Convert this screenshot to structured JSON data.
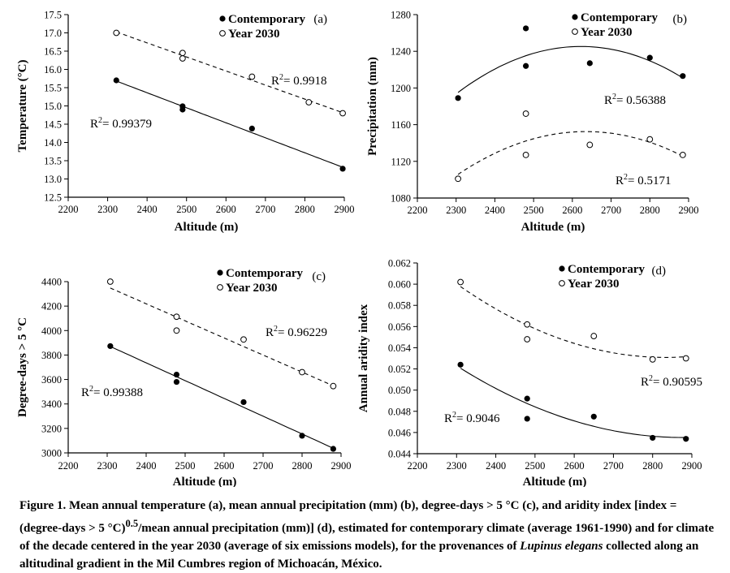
{
  "chart_data": [
    {
      "type": "scatter",
      "panel_label": "(a)",
      "xlabel": "Altitude (m)",
      "ylabel": "Temperature (°C)",
      "xlim": [
        2200,
        2900
      ],
      "ylim": [
        12.5,
        17.5
      ],
      "x_ticks": [
        "2200",
        "2300",
        "2400",
        "2500",
        "2600",
        "2700",
        "2800",
        "2900"
      ],
      "y_ticks": [
        "12.5",
        "13.0",
        "13.5",
        "14.0",
        "14.5",
        "15.0",
        "15.5",
        "16.0",
        "16.5",
        "17.0",
        "17.5"
      ],
      "legend": [
        "Contemporary",
        "Year 2030"
      ],
      "series": [
        {
          "name": "Contemporary",
          "marker": "filled",
          "x": [
            2322,
            2490,
            2490,
            2666,
            2896
          ],
          "y": [
            15.7,
            14.99,
            14.9,
            14.38,
            13.28
          ],
          "fit": "linear",
          "r2_text": "= 0.99379"
        },
        {
          "name": "Year 2030",
          "marker": "open",
          "x": [
            2322,
            2490,
            2490,
            2666,
            2810,
            2896
          ],
          "y": [
            17.0,
            16.45,
            16.3,
            15.8,
            15.1,
            14.8
          ],
          "fit": "linear",
          "r2_text": "= 0.9918"
        }
      ]
    },
    {
      "type": "scatter",
      "panel_label": "(b)",
      "xlabel": "Altitude (m)",
      "ylabel": "Precipitation (mm)",
      "xlim": [
        2200,
        2900
      ],
      "ylim": [
        1080,
        1280
      ],
      "x_ticks": [
        "2200",
        "2300",
        "2400",
        "2500",
        "2600",
        "2700",
        "2800",
        "2900"
      ],
      "y_ticks": [
        "1080",
        "1120",
        "1160",
        "1200",
        "1240",
        "1280"
      ],
      "legend": [
        "Contemporary",
        "Year 2030"
      ],
      "series": [
        {
          "name": "Contemporary",
          "marker": "filled",
          "x": [
            2305,
            2480,
            2480,
            2645,
            2800,
            2885
          ],
          "y": [
            1189,
            1265,
            1224,
            1227,
            1233,
            1213
          ],
          "fit": "quadratic",
          "r2_text": "= 0.56388"
        },
        {
          "name": "Year 2030",
          "marker": "open",
          "x": [
            2305,
            2480,
            2480,
            2645,
            2800,
            2885
          ],
          "y": [
            1101,
            1172,
            1127,
            1138,
            1144,
            1127
          ],
          "fit": "quadratic",
          "r2_text": "= 0.5171"
        }
      ]
    },
    {
      "type": "scatter",
      "panel_label": "(c)",
      "xlabel": "Altitude (m)",
      "ylabel": "Degree-days > 5 °C",
      "xlim": [
        2200,
        2900
      ],
      "ylim": [
        3000,
        4400
      ],
      "x_ticks": [
        "2200",
        "2300",
        "2400",
        "2500",
        "2600",
        "2700",
        "2800",
        "2900"
      ],
      "y_ticks": [
        "3000",
        "3200",
        "3400",
        "3600",
        "3800",
        "4000",
        "4200",
        "4400"
      ],
      "legend": [
        "Contemporary",
        "Year 2030"
      ],
      "series": [
        {
          "name": "Contemporary",
          "marker": "filled",
          "x": [
            2308,
            2478,
            2478,
            2650,
            2800,
            2880
          ],
          "y": [
            3873,
            3640,
            3580,
            3415,
            3140,
            3033
          ],
          "fit": "linear",
          "r2_text": "= 0.99388"
        },
        {
          "name": "Year 2030",
          "marker": "open",
          "x": [
            2308,
            2478,
            2478,
            2650,
            2800,
            2880
          ],
          "y": [
            4400,
            4113,
            4000,
            3927,
            3660,
            3546
          ],
          "fit": "linear",
          "r2_text": "= 0.96229"
        }
      ]
    },
    {
      "type": "scatter",
      "panel_label": "(d)",
      "xlabel": "Altitude (m)",
      "ylabel": "Annual aridity index",
      "xlim": [
        2200,
        2900
      ],
      "ylim": [
        0.044,
        0.062
      ],
      "x_ticks": [
        "2200",
        "2300",
        "2400",
        "2500",
        "2600",
        "2700",
        "2800",
        "2900"
      ],
      "y_ticks": [
        "0.044",
        "0.046",
        "0.048",
        "0.050",
        "0.052",
        "0.054",
        "0.056",
        "0.058",
        "0.060",
        "0.062"
      ],
      "legend": [
        "Contemporary",
        "Year 2030"
      ],
      "series": [
        {
          "name": "Contemporary",
          "marker": "filled",
          "x": [
            2310,
            2480,
            2480,
            2650,
            2800,
            2885
          ],
          "y": [
            0.0524,
            0.0492,
            0.0473,
            0.0475,
            0.0455,
            0.0454
          ],
          "fit": "quadratic",
          "r2_text": "= 0.9046"
        },
        {
          "name": "Year 2030",
          "marker": "open",
          "x": [
            2310,
            2480,
            2480,
            2650,
            2800,
            2885
          ],
          "y": [
            0.0602,
            0.0562,
            0.0548,
            0.0551,
            0.0529,
            0.053
          ],
          "fit": "quadratic",
          "r2_text": "= 0.90595"
        }
      ]
    }
  ],
  "caption": {
    "lead": "Figure 1.",
    "text1": " Mean annual temperature (a), mean annual precipitation (mm) (b), degree-days > 5 °C (c), and aridity index [index = (degree-days > 5 °C)",
    "sup": "0.5",
    "text2": "/mean annual precipitation (mm)] (d), estimated for contemporary climate (average 1961-1990) and for climate of the decade centered in the year 2030 (average of six emissions models), for the provenances of ",
    "species": "Lupinus elegans",
    "text3": " collected along an altitudinal gradient in the Mil Cumbres region of Michoacán, México."
  }
}
